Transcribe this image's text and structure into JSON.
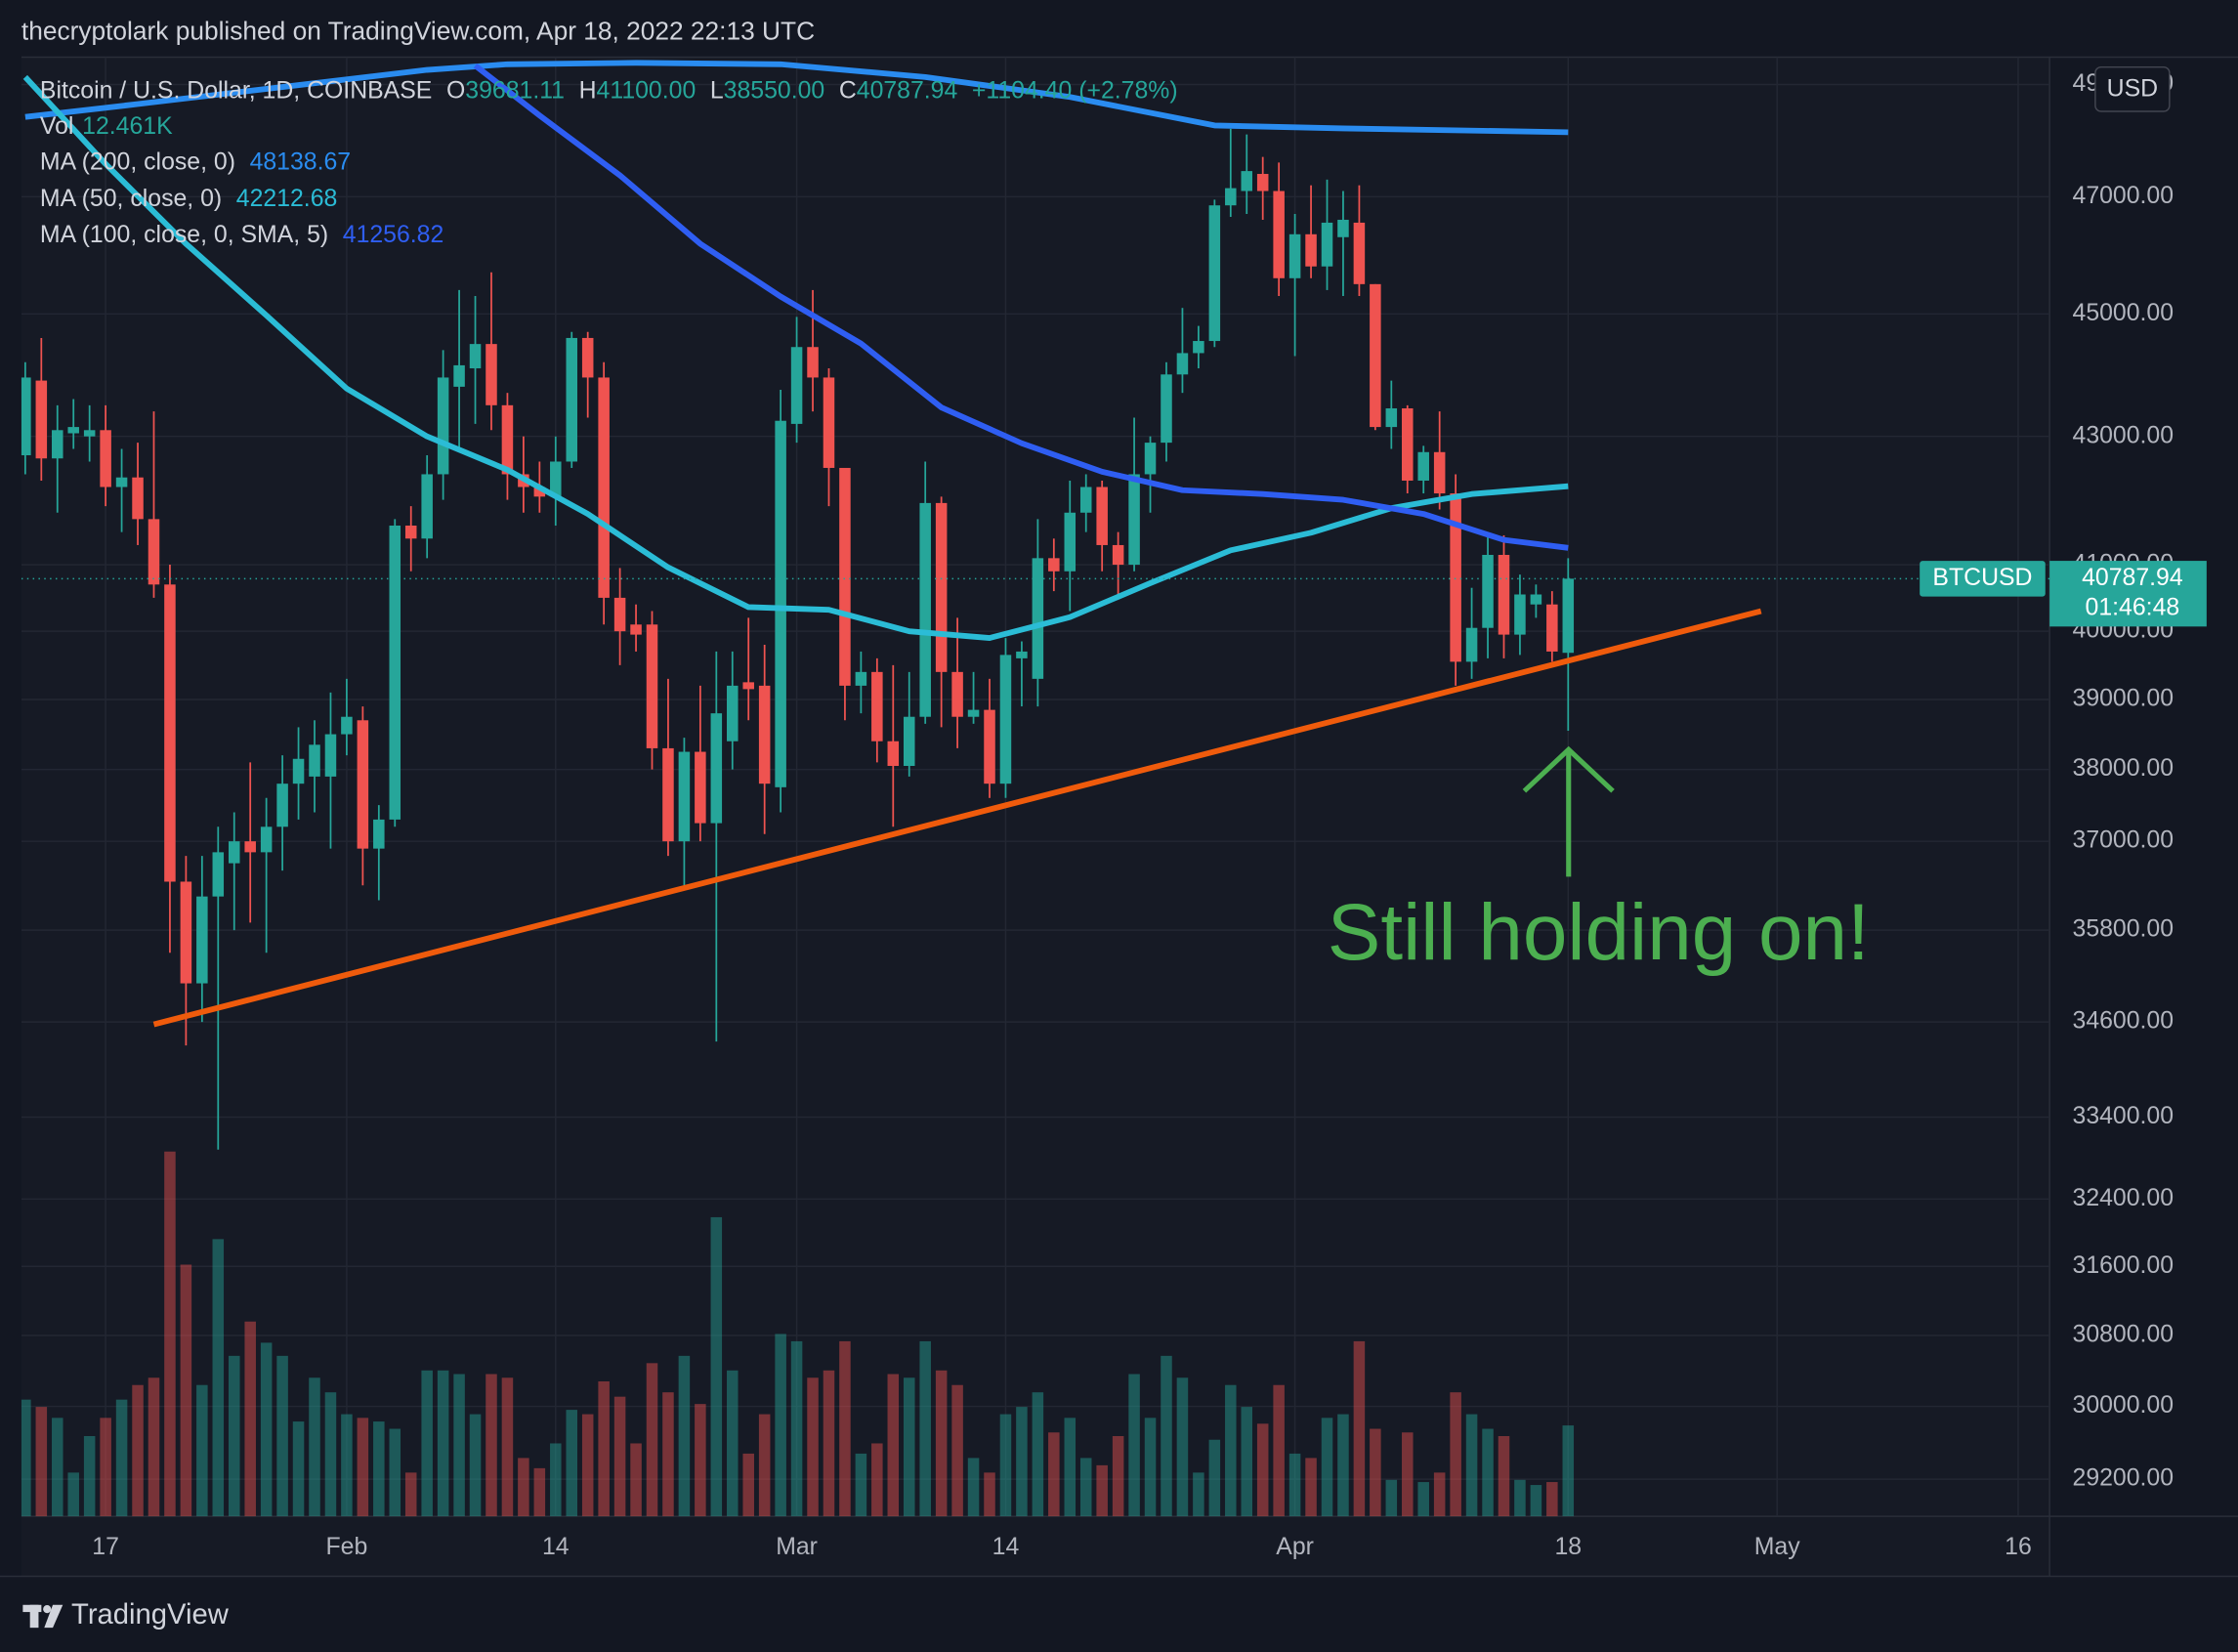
{
  "header": "thecryptolark published on TradingView.com, Apr 18, 2022 22:13 UTC",
  "footer": "TradingView",
  "chart_data": {
    "type": "candlestick",
    "log_scale": true,
    "grid": true,
    "up_color": "#26a69a",
    "down_color": "#ef5350",
    "currency": "USD",
    "legend": {
      "symbol": "Bitcoin / U.S. Dollar, 1D, COINBASE",
      "items": [
        {
          "key": "O",
          "value": "39681.11"
        },
        {
          "key": "H",
          "value": "41100.00"
        },
        {
          "key": "L",
          "value": "38550.00"
        },
        {
          "key": "C",
          "value": "40787.94"
        }
      ],
      "change": "+1104.40 (+2.78%)"
    },
    "xlim": [
      "2022-01-11",
      "2022-05-18"
    ],
    "xticks": [
      {
        "value": "2022-01-17",
        "label": "17"
      },
      {
        "value": "2022-02-01",
        "label": "Feb"
      },
      {
        "value": "2022-02-14",
        "label": "14"
      },
      {
        "value": "2022-03-01",
        "label": "Mar"
      },
      {
        "value": "2022-03-14",
        "label": "14"
      },
      {
        "value": "2022-04-01",
        "label": "Apr"
      },
      {
        "value": "2022-04-18",
        "label": "18"
      },
      {
        "value": "2022-05-01",
        "label": "May"
      },
      {
        "value": "2022-05-16",
        "label": "16"
      }
    ],
    "ylim": [
      28800,
      49500
    ],
    "yticks": [
      {
        "value": 29200,
        "label": "29200.00"
      },
      {
        "value": 30000,
        "label": "30000.00"
      },
      {
        "value": 30800,
        "label": "30800.00"
      },
      {
        "value": 31600,
        "label": "31600.00"
      },
      {
        "value": 32400,
        "label": "32400.00"
      },
      {
        "value": 33400,
        "label": "33400.00"
      },
      {
        "value": 34600,
        "label": "34600.00"
      },
      {
        "value": 35800,
        "label": "35800.00"
      },
      {
        "value": 37000,
        "label": "37000.00"
      },
      {
        "value": 38000,
        "label": "38000.00"
      },
      {
        "value": 39000,
        "label": "39000.00"
      },
      {
        "value": 40000,
        "label": "40000.00"
      },
      {
        "value": 41000,
        "label": "41000.00"
      },
      {
        "value": 43000,
        "label": "43000.00"
      },
      {
        "value": 45000,
        "label": "45000.00"
      },
      {
        "value": 47000,
        "label": "47000.00"
      },
      {
        "value": 49000,
        "label": "49000.00"
      }
    ],
    "x": [
      "2022-01-12",
      "2022-01-13",
      "2022-01-14",
      "2022-01-15",
      "2022-01-16",
      "2022-01-17",
      "2022-01-18",
      "2022-01-19",
      "2022-01-20",
      "2022-01-21",
      "2022-01-22",
      "2022-01-23",
      "2022-01-24",
      "2022-01-25",
      "2022-01-26",
      "2022-01-27",
      "2022-01-28",
      "2022-01-29",
      "2022-01-30",
      "2022-01-31",
      "2022-02-01",
      "2022-02-02",
      "2022-02-03",
      "2022-02-04",
      "2022-02-05",
      "2022-02-06",
      "2022-02-07",
      "2022-02-08",
      "2022-02-09",
      "2022-02-10",
      "2022-02-11",
      "2022-02-12",
      "2022-02-13",
      "2022-02-14",
      "2022-02-15",
      "2022-02-16",
      "2022-02-17",
      "2022-02-18",
      "2022-02-19",
      "2022-02-20",
      "2022-02-21",
      "2022-02-22",
      "2022-02-23",
      "2022-02-24",
      "2022-02-25",
      "2022-02-26",
      "2022-02-27",
      "2022-02-28",
      "2022-03-01",
      "2022-03-02",
      "2022-03-03",
      "2022-03-04",
      "2022-03-05",
      "2022-03-06",
      "2022-03-07",
      "2022-03-08",
      "2022-03-09",
      "2022-03-10",
      "2022-03-11",
      "2022-03-12",
      "2022-03-13",
      "2022-03-14",
      "2022-03-15",
      "2022-03-16",
      "2022-03-17",
      "2022-03-18",
      "2022-03-19",
      "2022-03-20",
      "2022-03-21",
      "2022-03-22",
      "2022-03-23",
      "2022-03-24",
      "2022-03-25",
      "2022-03-26",
      "2022-03-27",
      "2022-03-28",
      "2022-03-29",
      "2022-03-30",
      "2022-03-31",
      "2022-04-01",
      "2022-04-02",
      "2022-04-03",
      "2022-04-04",
      "2022-04-05",
      "2022-04-06",
      "2022-04-07",
      "2022-04-08",
      "2022-04-09",
      "2022-04-10",
      "2022-04-11",
      "2022-04-12",
      "2022-04-13",
      "2022-04-14",
      "2022-04-15",
      "2022-04-16",
      "2022-04-17",
      "2022-04-18"
    ],
    "open": [
      42700,
      43900,
      42650,
      43050,
      43000,
      43100,
      42200,
      42350,
      41700,
      40700,
      36450,
      35100,
      36250,
      36700,
      37000,
      36850,
      37200,
      37800,
      37900,
      37900,
      38500,
      38700,
      36900,
      37300,
      41600,
      41400,
      42400,
      43800,
      44100,
      44500,
      43500,
      42400,
      42200,
      42050,
      42600,
      44600,
      43950,
      40500,
      40100,
      40100,
      38300,
      37000,
      38250,
      37250,
      38400,
      39250,
      39200,
      37750,
      43200,
      44450,
      43950,
      42500,
      39200,
      39400,
      38400,
      38050,
      38750,
      41950,
      39400,
      38750,
      38850,
      37800,
      39600,
      39300,
      41100,
      40900,
      41800,
      42200,
      41300,
      41000,
      42400,
      42900,
      44000,
      44350,
      44550,
      46850,
      47100,
      47400,
      47100,
      45600,
      46350,
      45800,
      46300,
      46550,
      45500,
      43150,
      43450,
      42300,
      42750,
      42100,
      39550,
      40050,
      41150,
      39950,
      40400,
      40400,
      39681.11
    ],
    "high": [
      44200,
      44600,
      43500,
      43600,
      43500,
      43500,
      42800,
      42900,
      43400,
      41000,
      36800,
      36800,
      37200,
      37400,
      38100,
      37600,
      38200,
      38600,
      38700,
      39100,
      39300,
      38900,
      37500,
      41700,
      41900,
      42700,
      44400,
      45400,
      45300,
      45700,
      43700,
      43000,
      42600,
      43000,
      44700,
      44700,
      44200,
      40950,
      40400,
      40300,
      39300,
      38450,
      39200,
      39700,
      39700,
      40200,
      39800,
      43750,
      44950,
      45400,
      44100,
      42500,
      39700,
      39600,
      39500,
      39400,
      42600,
      42050,
      40200,
      39400,
      39300,
      39900,
      39850,
      41700,
      41400,
      42300,
      42400,
      42300,
      41500,
      43300,
      43000,
      44200,
      45100,
      44800,
      46950,
      48200,
      48100,
      47700,
      47600,
      46700,
      47200,
      47300,
      47100,
      47200,
      45500,
      43900,
      43500,
      42850,
      43400,
      42400,
      40650,
      41500,
      41450,
      40850,
      40700,
      40600,
      41100
    ],
    "low": [
      42400,
      42300,
      41800,
      42800,
      42600,
      41900,
      41500,
      41300,
      40500,
      35500,
      34300,
      34600,
      33000,
      35800,
      35900,
      35500,
      36600,
      37300,
      37400,
      36900,
      38200,
      36400,
      36200,
      37200,
      40900,
      41100,
      42000,
      42800,
      43200,
      43100,
      42000,
      41800,
      41800,
      41600,
      42500,
      43300,
      40100,
      39500,
      39700,
      38000,
      36800,
      36400,
      37000,
      34350,
      38000,
      38700,
      37100,
      37400,
      42900,
      43400,
      41900,
      38700,
      38800,
      38100,
      37200,
      37900,
      38650,
      38600,
      38300,
      38650,
      37600,
      37600,
      38900,
      38900,
      40600,
      40300,
      41500,
      40900,
      40500,
      40900,
      41800,
      42600,
      43700,
      44100,
      44450,
      46650,
      46700,
      46600,
      45300,
      44300,
      45600,
      45400,
      45300,
      45300,
      43100,
      42800,
      42100,
      42100,
      41850,
      39200,
      39300,
      39600,
      39600,
      39650,
      40200,
      39550,
      38550
    ],
    "close": [
      43950,
      42650,
      43100,
      43150,
      43100,
      42200,
      42350,
      41700,
      40700,
      36450,
      35100,
      36250,
      36850,
      37000,
      36850,
      37200,
      37800,
      38150,
      38350,
      38500,
      38750,
      36900,
      37300,
      41600,
      41400,
      42400,
      43950,
      44150,
      44500,
      43500,
      42400,
      42200,
      42050,
      42600,
      44600,
      43950,
      40500,
      40000,
      39950,
      38300,
      37000,
      38250,
      37250,
      38800,
      39200,
      39150,
      37800,
      43250,
      44450,
      43950,
      42500,
      39200,
      39400,
      38400,
      38050,
      38750,
      41950,
      39400,
      38750,
      38850,
      37800,
      39650,
      39700,
      41100,
      40900,
      41800,
      42200,
      41300,
      41000,
      42400,
      42900,
      44000,
      44350,
      44550,
      46850,
      47150,
      47450,
      47100,
      45600,
      46350,
      45800,
      46550,
      46600,
      45500,
      43150,
      43450,
      42300,
      42750,
      42100,
      39550,
      40050,
      41150,
      39950,
      40550,
      40550,
      39700,
      40787.94
    ],
    "volume": {
      "name": "Vol",
      "label": "12.461K",
      "ylim": [
        0,
        200
      ],
      "values": [
        16,
        15,
        13.5,
        6,
        11,
        13.5,
        16,
        18,
        19,
        50,
        34.5,
        18,
        38,
        22,
        26.7,
        23.8,
        22,
        13,
        19,
        17,
        14,
        13.5,
        13,
        12,
        6,
        20,
        20,
        19.5,
        14,
        19.5,
        19,
        8,
        6.6,
        10,
        14.6,
        14,
        18.5,
        16.4,
        10,
        21,
        17,
        22,
        15.4,
        41,
        20,
        8.6,
        14,
        25,
        24,
        19,
        20,
        24,
        8.6,
        10,
        19.5,
        19,
        24,
        20,
        18,
        8,
        6,
        14,
        15,
        17,
        11.5,
        13.5,
        8,
        7,
        11,
        19.5,
        13.5,
        22,
        19,
        6,
        10.5,
        18,
        15,
        12.7,
        18,
        8.6,
        8,
        13.5,
        14,
        24,
        12,
        5,
        11.5,
        4.7,
        6,
        17,
        14,
        12,
        11,
        5,
        4.3,
        4.7,
        12.461
      ]
    },
    "series": [
      {
        "name": "MA (200, close, 0)",
        "value_label": "48138.67",
        "color": "#2a8cf0",
        "x": [
          "2022-01-12",
          "2022-01-19",
          "2022-01-28",
          "2022-02-06",
          "2022-02-11",
          "2022-02-19",
          "2022-02-28",
          "2022-03-09",
          "2022-03-18",
          "2022-03-27",
          "2022-04-04",
          "2022-04-18"
        ],
        "values": [
          48413,
          48645,
          48954,
          49266,
          49369,
          49395,
          49369,
          49135,
          48773,
          48260,
          48208,
          48138.67
        ]
      },
      {
        "name": "MA (50, close, 0)",
        "value_label": "42212.68",
        "color": "#2bbcd6",
        "x": [
          "2022-01-12",
          "2022-01-17",
          "2022-01-22",
          "2022-01-27",
          "2022-02-01",
          "2022-02-06",
          "2022-02-11",
          "2022-02-16",
          "2022-02-21",
          "2022-02-26",
          "2022-03-03",
          "2022-03-08",
          "2022-03-13",
          "2022-03-18",
          "2022-03-23",
          "2022-03-28",
          "2022-04-02",
          "2022-04-07",
          "2022-04-12",
          "2022-04-18"
        ],
        "values": [
          49135,
          47575,
          46187,
          44976,
          43770,
          43000,
          42470,
          41780,
          40960,
          40360,
          40320,
          40000,
          39900,
          40210,
          40720,
          41220,
          41490,
          41870,
          42090,
          42212.68
        ]
      },
      {
        "name": "MA (100, close, 0, SMA, 5)",
        "value_label": "41256.82",
        "color": "#2f5ef2",
        "x": [
          "2022-02-09",
          "2022-02-13",
          "2022-02-18",
          "2022-02-23",
          "2022-02-28",
          "2022-03-05",
          "2022-03-10",
          "2022-03-15",
          "2022-03-20",
          "2022-03-25",
          "2022-03-30",
          "2022-04-04",
          "2022-04-09",
          "2022-04-14",
          "2022-04-18"
        ],
        "values": [
          49343,
          48439,
          47375,
          46187,
          45291,
          44507,
          43465,
          42890,
          42440,
          42150,
          42090,
          42000,
          41780,
          41380,
          41256.82
        ]
      }
    ],
    "trendline": {
      "color": "#ef5b0c",
      "x": [
        "2022-01-20",
        "2022-04-30"
      ],
      "values": [
        34570,
        40300
      ]
    },
    "last_price": {
      "symbol": "BTCUSD",
      "value": 40787.94,
      "countdown": "01:46:48"
    },
    "annotation": {
      "text": "Still holding on!",
      "color": "#4caf50"
    }
  }
}
